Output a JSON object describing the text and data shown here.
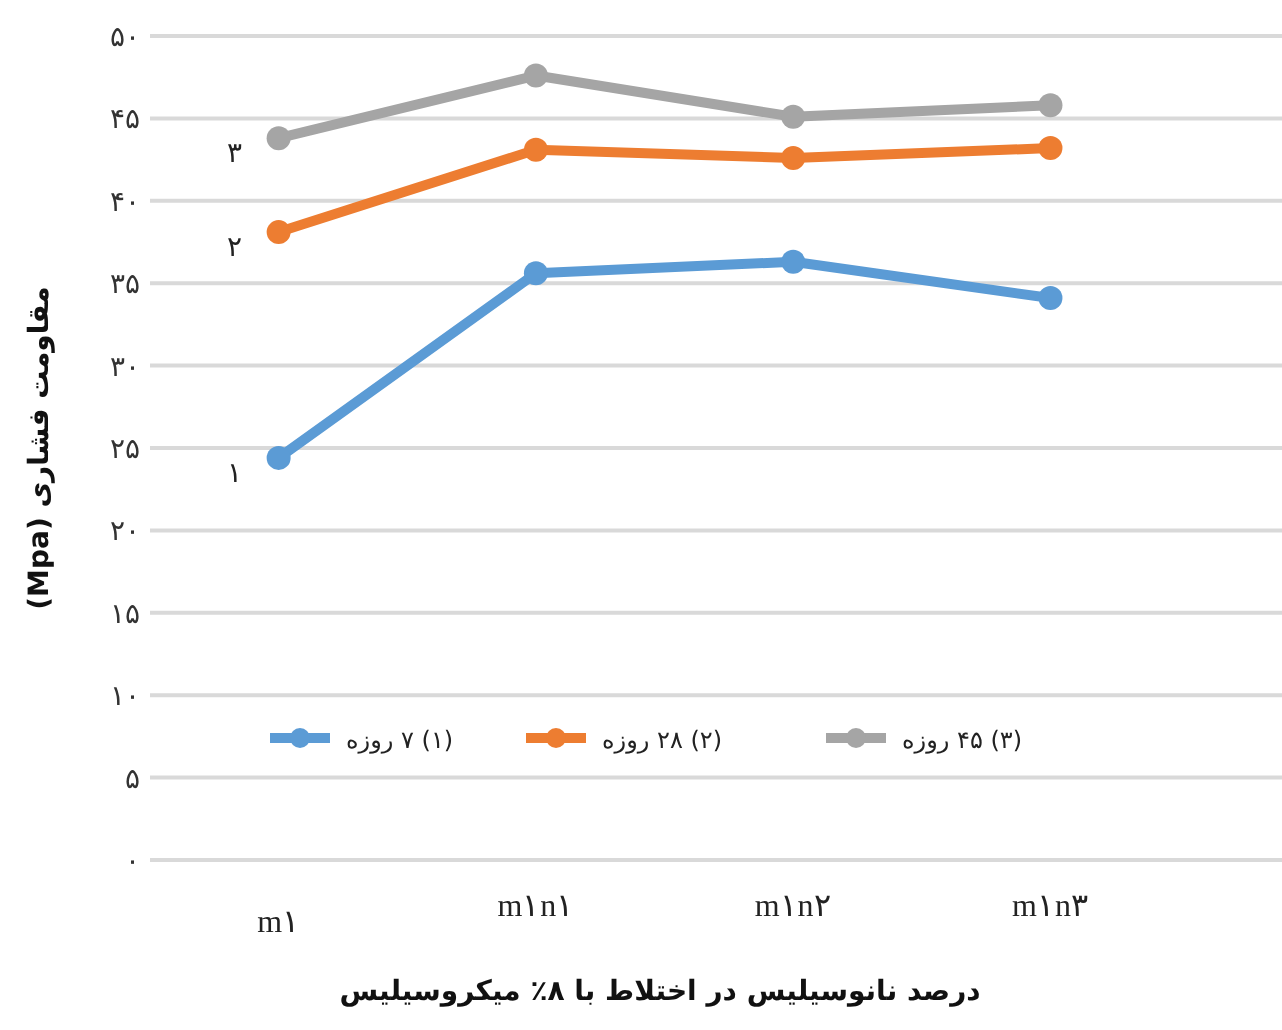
{
  "chart_data": {
    "type": "line",
    "xlabel": "درصد نانوسیلیس در اختلاط با ۸٪ میکروسیلیس",
    "ylabel": "مقاومت فشاری (Mpa)",
    "categories": [
      "m۱",
      "m۱n۱",
      "m۱n۲",
      "m۱n۳"
    ],
    "series": [
      {
        "name": "(۱) ۷ روزه",
        "color": "#5b9bd5",
        "values": [
          24.4,
          35.6,
          36.3,
          34.1
        ]
      },
      {
        "name": "(۲) ۲۸ روزه",
        "color": "#ed7d31",
        "values": [
          38.1,
          43.1,
          42.6,
          43.2
        ]
      },
      {
        "name": "(۳) ۴۵ روزه",
        "color": "#a5a5a5",
        "values": [
          43.8,
          47.6,
          45.1,
          45.8
        ]
      }
    ],
    "ylim": [
      0,
      50
    ],
    "yticks": [
      {
        "value": 0,
        "label": "۰"
      },
      {
        "value": 5,
        "label": "۵"
      },
      {
        "value": 10,
        "label": "۱۰"
      },
      {
        "value": 15,
        "label": "۱۵"
      },
      {
        "value": 20,
        "label": "۲۰"
      },
      {
        "value": 25,
        "label": "۲۵"
      },
      {
        "value": 30,
        "label": "۳۰"
      },
      {
        "value": 35,
        "label": "۳۵"
      },
      {
        "value": 40,
        "label": "۴۰"
      },
      {
        "value": 45,
        "label": "۴۵"
      },
      {
        "value": 50,
        "label": "۵۰"
      }
    ],
    "annotations": [
      {
        "text": "۱",
        "x": "m۱",
        "y": 24.4
      },
      {
        "text": "۲",
        "x": "m۱",
        "y": 38.1
      },
      {
        "text": "۳",
        "x": "m۱",
        "y": 43.8
      }
    ],
    "grid": "y",
    "legend": "bottom",
    "marker": "circle",
    "line_style": "solid"
  }
}
